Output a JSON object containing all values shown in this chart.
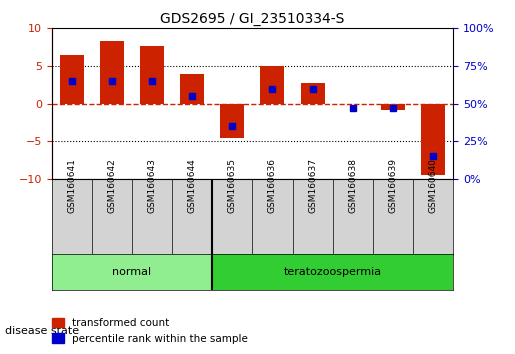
{
  "title": "GDS2695 / GI_23510334-S",
  "samples": [
    "GSM160641",
    "GSM160642",
    "GSM160643",
    "GSM160644",
    "GSM160635",
    "GSM160636",
    "GSM160637",
    "GSM160638",
    "GSM160639",
    "GSM160640"
  ],
  "transformed_count": [
    6.5,
    8.3,
    7.7,
    3.9,
    -4.6,
    5.0,
    2.8,
    0.0,
    -0.8,
    -9.5
  ],
  "percentile_rank": [
    65,
    65,
    65,
    55,
    35,
    60,
    60,
    47,
    47,
    15
  ],
  "disease_groups": [
    {
      "label": "normal",
      "indices": [
        0,
        1,
        2,
        3
      ],
      "color": "#90EE90"
    },
    {
      "label": "teratozoospermia",
      "indices": [
        4,
        5,
        6,
        7,
        8,
        9
      ],
      "color": "#32CD32"
    }
  ],
  "ylim_left": [
    -10,
    10
  ],
  "ylim_right": [
    0,
    100
  ],
  "yticks_left": [
    -10,
    -5,
    0,
    5,
    10
  ],
  "yticks_right": [
    0,
    25,
    50,
    75,
    100
  ],
  "bar_color": "#CC2200",
  "percentile_color": "#0000CC",
  "zero_line_color": "#CC2200",
  "dotted_line_color": "#000000",
  "bg_color": "#FFFFFF",
  "bar_width": 0.6,
  "label_transformed": "transformed count",
  "label_percentile": "percentile rank within the sample",
  "disease_state_label": "disease state",
  "left_yaxis_color": "#CC2200",
  "right_yaxis_color": "#0000CC"
}
